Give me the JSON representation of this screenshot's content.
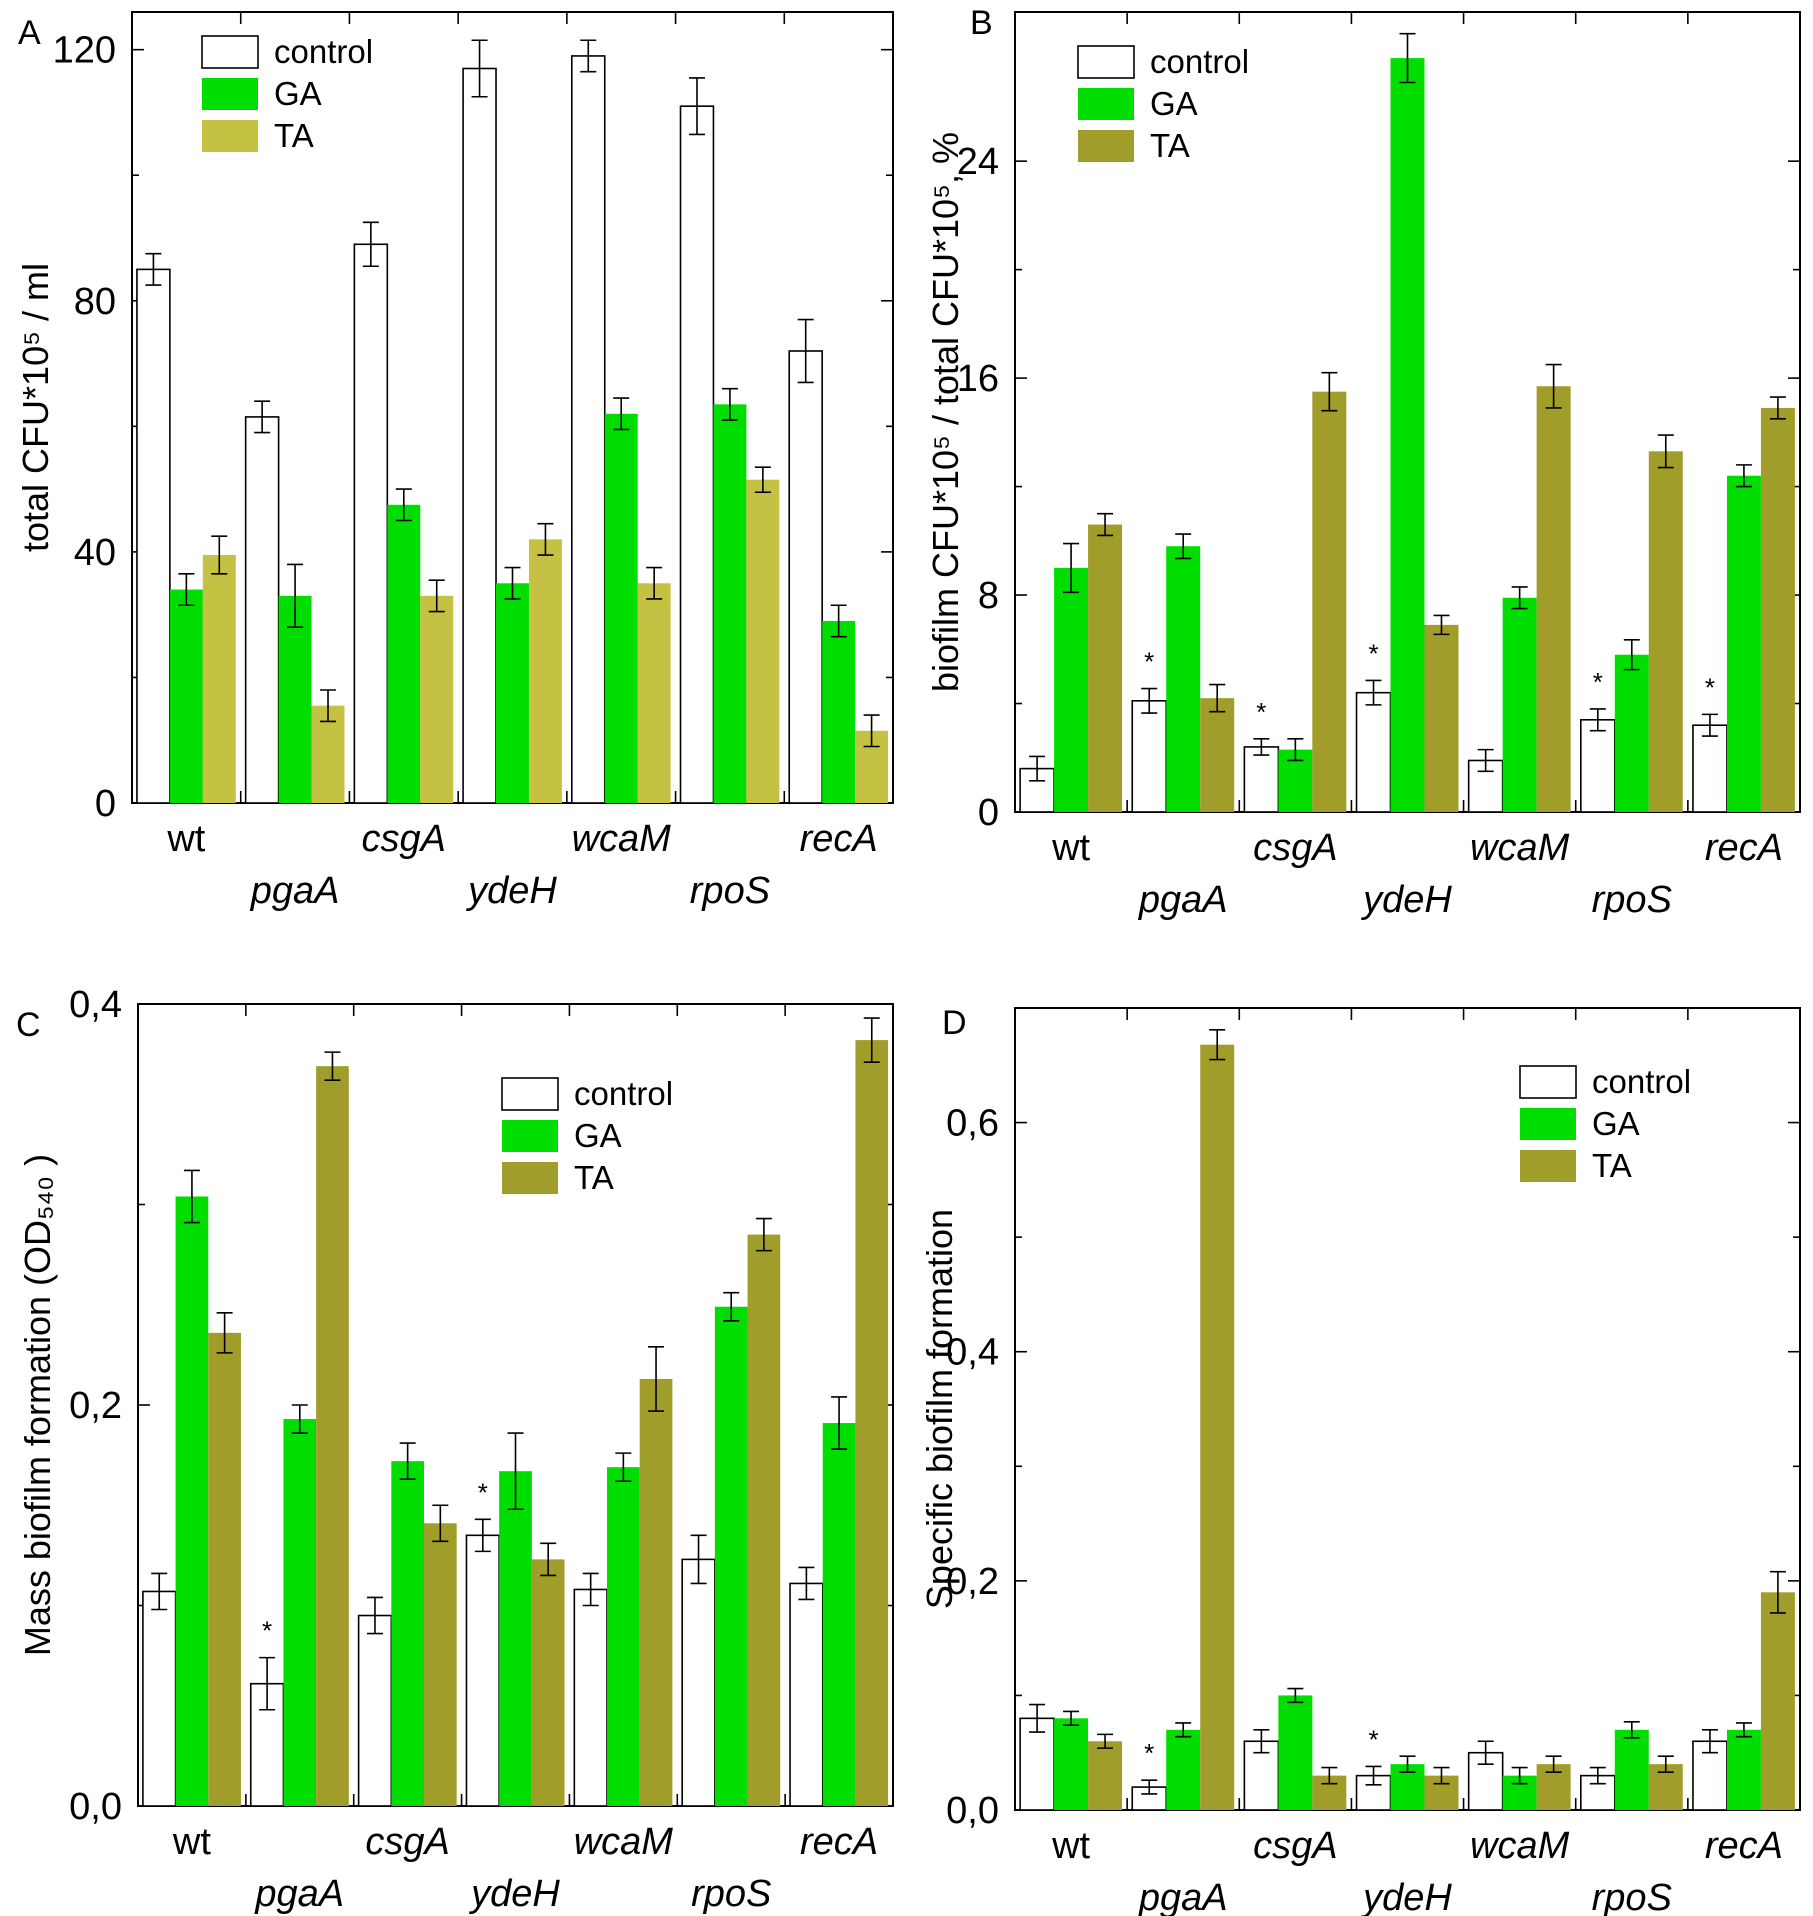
{
  "colors": {
    "control": "#ffffff",
    "GA": "#00dd00",
    "TA_A": "#c5c143",
    "TA": "#a19d2b",
    "stroke": "#000000"
  },
  "legend": {
    "control": "control",
    "GA": "GA",
    "TA": "TA"
  },
  "chart_data": [
    {
      "panel": "A",
      "type": "bar",
      "ylabel": "total CFU*10⁵ / ml",
      "ylim": [
        0,
        126
      ],
      "yticks": [
        0,
        40,
        80,
        120
      ],
      "ytick_labels": [
        "0",
        "40",
        "80",
        "120"
      ],
      "legend_position": "top-left",
      "categories": [
        "wt",
        "pgaA",
        "csgA",
        "ydeH",
        "wcaM",
        "rpoS",
        "recA"
      ],
      "series": [
        {
          "name": "control",
          "values": [
            85,
            61.5,
            89,
            117,
            119,
            111,
            72
          ],
          "errors": [
            2.5,
            2.5,
            3.5,
            4.5,
            2.5,
            4.5,
            5
          ]
        },
        {
          "name": "GA",
          "values": [
            34,
            33,
            47.5,
            35,
            62,
            63.5,
            29
          ],
          "errors": [
            2.5,
            5,
            2.5,
            2.5,
            2.5,
            2.5,
            2.5
          ]
        },
        {
          "name": "TA",
          "values": [
            39.5,
            15.5,
            33,
            42,
            35,
            51.5,
            11.5
          ],
          "errors": [
            3,
            2.5,
            2.5,
            2.5,
            2.5,
            2,
            2.5
          ]
        }
      ],
      "significant": []
    },
    {
      "panel": "B",
      "type": "bar",
      "ylabel": "biofilm CFU*10⁵ / total CFU*10⁵, %",
      "ylim": [
        0,
        29.5
      ],
      "yticks": [
        0,
        8,
        16,
        24
      ],
      "ytick_labels": [
        "0",
        "8",
        "16",
        "24"
      ],
      "legend_position": "top-left",
      "categories": [
        "wt",
        "pgaA",
        "csgA",
        "ydeH",
        "wcaM",
        "rpoS",
        "recA"
      ],
      "series": [
        {
          "name": "control",
          "values": [
            1.6,
            4.1,
            2.4,
            4.4,
            1.9,
            3.4,
            3.2
          ],
          "errors": [
            0.45,
            0.45,
            0.3,
            0.45,
            0.4,
            0.4,
            0.4
          ]
        },
        {
          "name": "GA",
          "values": [
            9.0,
            9.8,
            2.3,
            27.8,
            7.9,
            5.8,
            12.4
          ],
          "errors": [
            0.9,
            0.45,
            0.4,
            0.9,
            0.4,
            0.55,
            0.4
          ]
        },
        {
          "name": "TA",
          "values": [
            10.6,
            4.2,
            15.5,
            6.9,
            15.7,
            13.3,
            14.9
          ],
          "errors": [
            0.4,
            0.5,
            0.7,
            0.35,
            0.8,
            0.6,
            0.4
          ]
        }
      ],
      "significant": [
        1,
        2,
        3,
        5,
        6
      ]
    },
    {
      "panel": "C",
      "type": "bar",
      "ylabel": "Mass biofilm formation (OD₅₄₀ )",
      "ylim": [
        0,
        0.4
      ],
      "yticks": [
        0,
        0.2,
        0.4
      ],
      "ytick_labels": [
        "0,0",
        "0,2",
        "0,4"
      ],
      "legend_position": "top-right",
      "categories": [
        "wt",
        "pgaA",
        "csgA",
        "ydeH",
        "wcaM",
        "rpoS",
        "recA"
      ],
      "series": [
        {
          "name": "control",
          "values": [
            0.107,
            0.061,
            0.095,
            0.135,
            0.108,
            0.123,
            0.111
          ],
          "errors": [
            0.009,
            0.013,
            0.009,
            0.008,
            0.008,
            0.012,
            0.008
          ]
        },
        {
          "name": "GA",
          "values": [
            0.304,
            0.193,
            0.172,
            0.167,
            0.169,
            0.249,
            0.191
          ],
          "errors": [
            0.013,
            0.007,
            0.009,
            0.019,
            0.007,
            0.007,
            0.013
          ]
        },
        {
          "name": "TA",
          "values": [
            0.236,
            0.369,
            0.141,
            0.123,
            0.213,
            0.285,
            0.382
          ],
          "errors": [
            0.01,
            0.007,
            0.009,
            0.008,
            0.016,
            0.008,
            0.011
          ]
        }
      ],
      "significant": [
        1,
        3
      ]
    },
    {
      "panel": "D",
      "type": "bar",
      "ylabel": "Specific biofilm formation",
      "ylim": [
        0,
        0.7
      ],
      "yticks": [
        0,
        0.2,
        0.4,
        0.6
      ],
      "ytick_labels": [
        "0,0",
        "0,2",
        "0,4",
        "0,6"
      ],
      "legend_position": "top-right",
      "categories": [
        "wt",
        "pgaA",
        "csgA",
        "ydeH",
        "wcaM",
        "rpoS",
        "recA"
      ],
      "series": [
        {
          "name": "control",
          "values": [
            0.08,
            0.02,
            0.06,
            0.03,
            0.05,
            0.03,
            0.06
          ],
          "errors": [
            0.012,
            0.006,
            0.01,
            0.008,
            0.01,
            0.007,
            0.01
          ]
        },
        {
          "name": "GA",
          "values": [
            0.08,
            0.07,
            0.1,
            0.04,
            0.03,
            0.07,
            0.07
          ],
          "errors": [
            0.006,
            0.006,
            0.006,
            0.007,
            0.007,
            0.007,
            0.006
          ]
        },
        {
          "name": "TA",
          "values": [
            0.06,
            0.668,
            0.03,
            0.03,
            0.04,
            0.04,
            0.19
          ],
          "errors": [
            0.006,
            0.013,
            0.007,
            0.007,
            0.007,
            0.007,
            0.018
          ]
        }
      ],
      "significant": [
        1,
        3
      ]
    }
  ]
}
